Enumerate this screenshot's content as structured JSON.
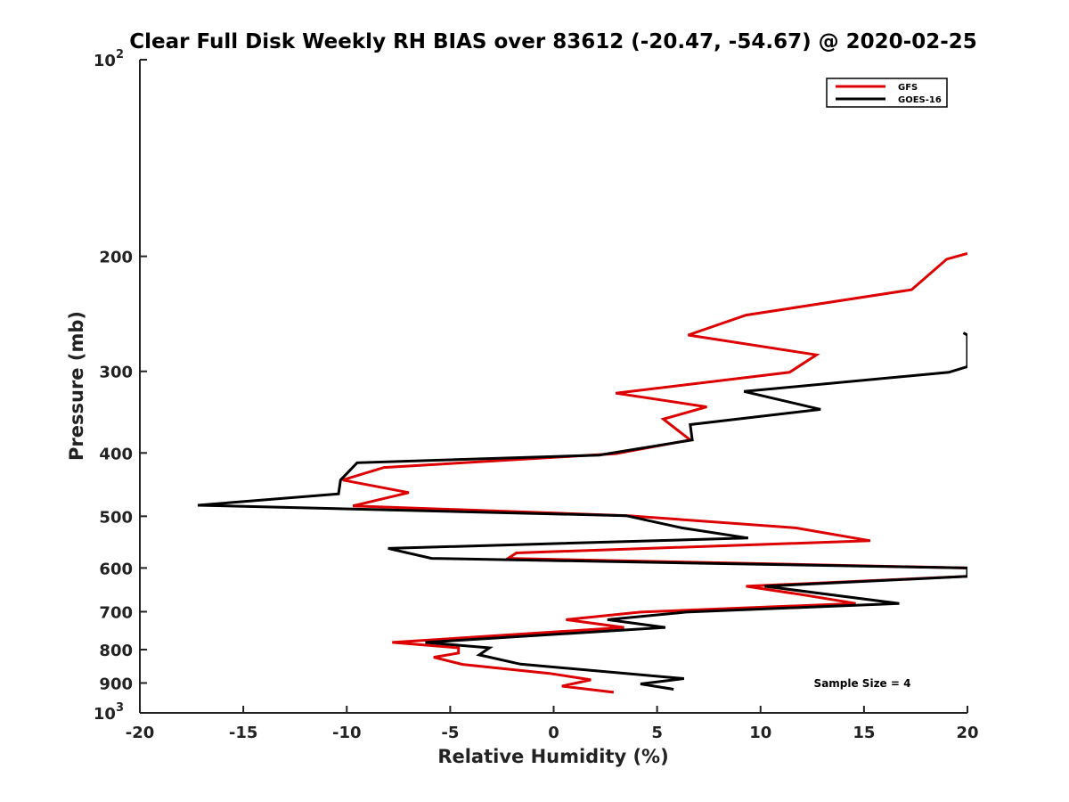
{
  "chart_data": {
    "type": "line",
    "title": "Clear Full Disk Weekly RH BIAS over 83612 (-20.47, -54.67) @ 2020-02-25",
    "xlabel": "Relative Humidity (%)",
    "ylabel": "Pressure (mb)",
    "xlim": [
      -20,
      20
    ],
    "ylim": [
      1000,
      100
    ],
    "yscale": "log",
    "x_ticks": [
      -20,
      -15,
      -10,
      -5,
      0,
      5,
      10,
      15,
      20
    ],
    "y_ticks": [
      {
        "value": 100,
        "label": "10",
        "sup": "2"
      },
      {
        "value": 200,
        "label": "200"
      },
      {
        "value": 300,
        "label": "300"
      },
      {
        "value": 400,
        "label": "400"
      },
      {
        "value": 500,
        "label": "500"
      },
      {
        "value": 600,
        "label": "600"
      },
      {
        "value": 700,
        "label": "700"
      },
      {
        "value": 800,
        "label": "800"
      },
      {
        "value": 900,
        "label": "900"
      },
      {
        "value": 1000,
        "label": "10",
        "sup": "3"
      }
    ],
    "grid": false,
    "legend_position": "top-right",
    "annotation": "Sample Size = 4",
    "series": [
      {
        "name": "GFS",
        "color": "#dd0000",
        "points": [
          [
            20,
            198
          ],
          [
            19,
            202
          ],
          [
            17.3,
            225
          ],
          [
            9.3,
            246
          ],
          [
            6.5,
            264
          ],
          [
            12.7,
            283
          ],
          [
            11.4,
            301
          ],
          [
            3,
            324
          ],
          [
            7.4,
            340
          ],
          [
            5.3,
            355
          ],
          [
            6.6,
            382
          ],
          [
            3,
            401
          ],
          [
            -8.2,
            421
          ],
          [
            -10.2,
            440
          ],
          [
            -7,
            460
          ],
          [
            -9.7,
            482
          ],
          [
            3.6,
            499
          ],
          [
            11.7,
            521
          ],
          [
            15.3,
            545
          ],
          [
            -1.8,
            569
          ],
          [
            -2.2,
            580
          ],
          [
            20,
            600
          ],
          [
            20,
            618
          ],
          [
            9.3,
            640
          ],
          [
            12.1,
            660
          ],
          [
            14.6,
            680
          ],
          [
            4.2,
            701
          ],
          [
            0.6,
            720
          ],
          [
            3.4,
            740
          ],
          [
            -7.8,
            780
          ],
          [
            -4.6,
            795
          ],
          [
            -4.6,
            810
          ],
          [
            -5.8,
            822
          ],
          [
            -4.4,
            843
          ],
          [
            -0.2,
            870
          ],
          [
            1.8,
            890
          ],
          [
            0.4,
            910
          ],
          [
            2.9,
            930
          ]
        ]
      },
      {
        "name": "GOES-16",
        "color": "#000000",
        "points": [
          [
            19.8,
            262
          ],
          [
            20,
            264
          ],
          [
            20,
            295
          ],
          [
            19.1,
            301
          ],
          [
            9.2,
            322
          ],
          [
            12.9,
            343
          ],
          [
            6.6,
            362
          ],
          [
            6.7,
            382
          ],
          [
            2.2,
            403
          ],
          [
            -9.5,
            414
          ],
          [
            -10.3,
            440
          ],
          [
            -10.4,
            462
          ],
          [
            -17.2,
            481
          ],
          [
            3.5,
            499
          ],
          [
            6.2,
            521
          ],
          [
            9.4,
            540
          ],
          [
            -8,
            560
          ],
          [
            -5.9,
            580
          ],
          [
            20,
            600
          ],
          [
            20,
            612
          ],
          [
            20,
            618
          ],
          [
            10.2,
            640
          ],
          [
            16.7,
            680
          ],
          [
            6.4,
            701
          ],
          [
            2.6,
            720
          ],
          [
            5.4,
            740
          ],
          [
            -6.2,
            780
          ],
          [
            -3.1,
            795
          ],
          [
            -3.6,
            815
          ],
          [
            -1.6,
            842
          ],
          [
            6.3,
            886
          ],
          [
            4.2,
            903
          ],
          [
            5.8,
            920
          ]
        ]
      }
    ]
  }
}
